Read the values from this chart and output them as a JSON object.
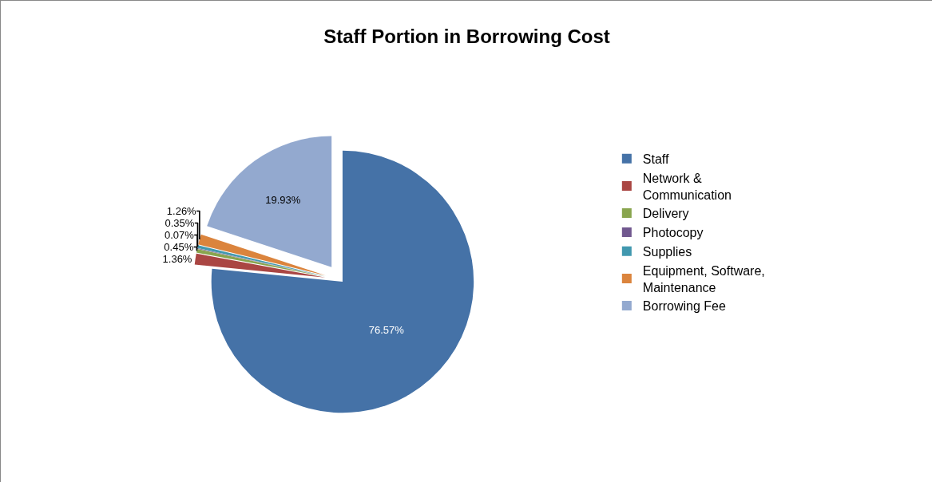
{
  "chart_data": {
    "type": "pie",
    "title": "Staff Portion in Borrowing Cost",
    "categories": [
      "Staff",
      "Network & Communication",
      "Delivery",
      "Photocopy",
      "Supplies",
      "Equipment, Software, Maintenance",
      "Borrowing Fee"
    ],
    "values": [
      76.57,
      1.36,
      0.45,
      0.07,
      0.35,
      1.26,
      19.93
    ],
    "colors": [
      "#4572a7",
      "#aa4643",
      "#89a54e",
      "#71588f",
      "#4198af",
      "#db843d",
      "#93a9cf"
    ],
    "value_labels": [
      "76.57%",
      "1.36%",
      "0.45%",
      "0.07%",
      "0.35%",
      "1.26%",
      "19.93%"
    ],
    "legend": "right"
  }
}
